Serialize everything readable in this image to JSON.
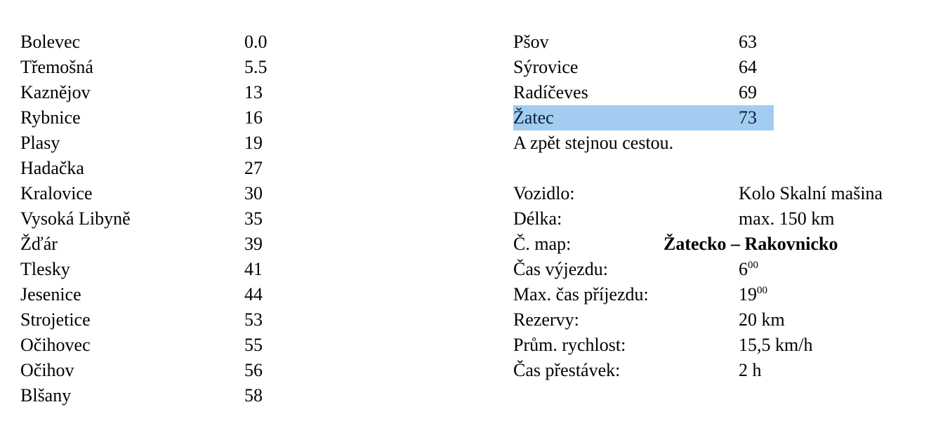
{
  "route_left": [
    {
      "place": "Bolevec",
      "km": "0.0"
    },
    {
      "place": "Třemošná",
      "km": "5.5"
    },
    {
      "place": "Kaznějov",
      "km": "13"
    },
    {
      "place": "Rybnice",
      "km": "16"
    },
    {
      "place": "Plasy",
      "km": "19"
    },
    {
      "place": "Hadačka",
      "km": "27"
    },
    {
      "place": "Kralovice",
      "km": "30"
    },
    {
      "place": "Vysoká Libyně",
      "km": "35"
    },
    {
      "place": "Žďár",
      "km": "39"
    },
    {
      "place": "Tlesky",
      "km": "41"
    },
    {
      "place": "Jesenice",
      "km": "44"
    },
    {
      "place": "Strojetice",
      "km": "53"
    },
    {
      "place": "Očihovec",
      "km": "55"
    },
    {
      "place": "Očihov",
      "km": "56"
    },
    {
      "place": "Blšany",
      "km": "58"
    }
  ],
  "route_right": [
    {
      "place": "Pšov",
      "km": "63"
    },
    {
      "place": "Sýrovice",
      "km": "64"
    },
    {
      "place": "Radíčeves",
      "km": "69"
    },
    {
      "place": "Žatec",
      "km": "73",
      "highlighted": true
    }
  ],
  "return_note": "A zpět stejnou cestou.",
  "highlight_color": "#a3cdf0",
  "details": {
    "vehicle_label": "Vozidlo:",
    "vehicle": "Kolo Skalní mašina",
    "length_label": "Délka:",
    "length": "max. 150 km",
    "maps_label": "Č. map:",
    "maps": "Žatecko – Rakovnicko",
    "departure_label": "Čas výjezdu:",
    "departure_hour": "6",
    "departure_min": "00",
    "arrival_label": "Max. čas příjezdu:",
    "arrival_hour": "19",
    "arrival_min": "00",
    "reserve_label": "Rezervy:",
    "reserve": "20 km",
    "speed_label": "Prům. rychlost:",
    "speed": "15,5 km/h",
    "breaks_label": "Čas přestávek:",
    "breaks": "2 h"
  }
}
